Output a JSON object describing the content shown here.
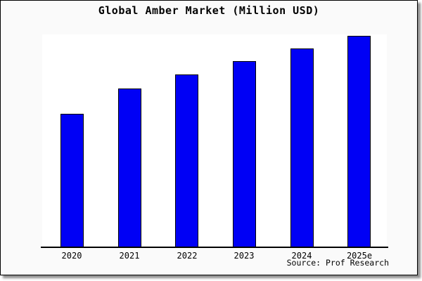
{
  "figure": {
    "title": "Global Amber Market (Million USD)",
    "source": "Source: Prof Research"
  },
  "colors": {
    "bar_fill": "#0000f5",
    "bar_edge": "#000000",
    "figure_background": "#fafafa",
    "plot_background": "#ffffff",
    "axis_line": "#000000",
    "shadow": "#8f8f8f"
  },
  "chart_data": {
    "type": "bar",
    "title": "Global Amber Market (Million USD)",
    "categories": [
      "2020",
      "2021",
      "2022",
      "2023",
      "2024",
      "2025e"
    ],
    "values": [
      63,
      75,
      81.5,
      88,
      94,
      100
    ],
    "value_note": "no y-axis ticks or labels shown in chart; values are relative bar heights indexed to 2025e = 100",
    "xlabel": "",
    "ylabel": "",
    "ylim": [
      0,
      100.3
    ],
    "grid": false,
    "legend": false,
    "y_axis_visible": false,
    "annotations": [
      "Source: Prof Research"
    ]
  }
}
